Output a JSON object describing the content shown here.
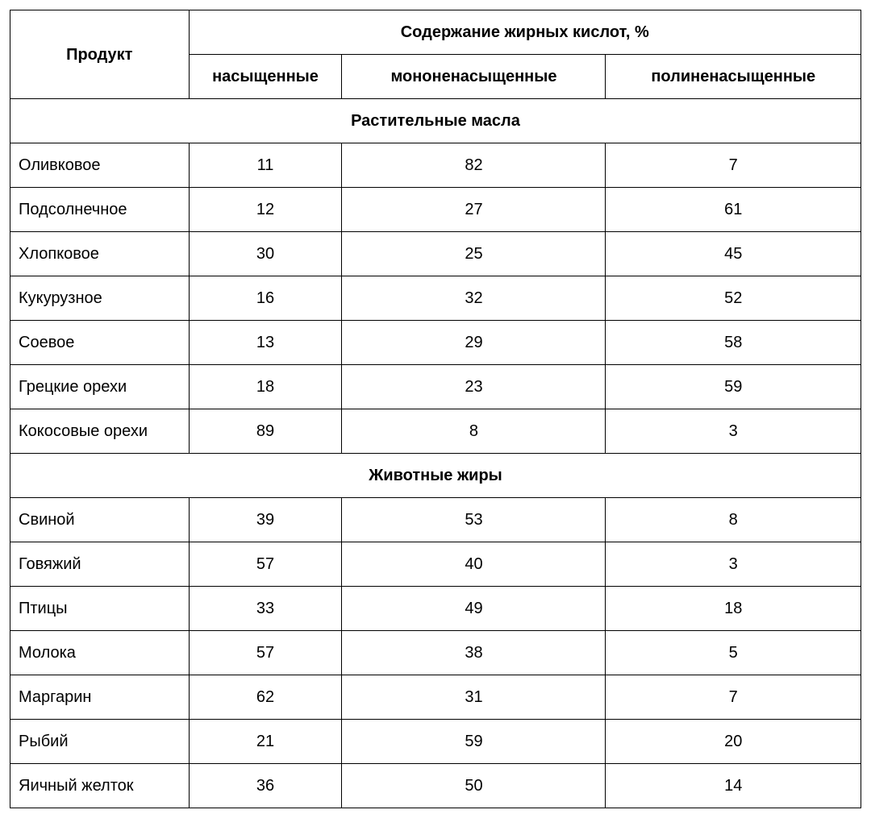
{
  "table": {
    "type": "table",
    "border_color": "#000000",
    "background_color": "#ffffff",
    "text_color": "#000000",
    "font_family": "Arial",
    "header_fontsize_pt": 15,
    "body_fontsize_pt": 15,
    "column_widths_pct": [
      21,
      18,
      31,
      30
    ],
    "alignments": [
      "left",
      "center",
      "center",
      "center"
    ],
    "headers": {
      "product": "Продукт",
      "group": "Содержание жирных кислот, %",
      "sub": {
        "saturated": "насыщенные",
        "mono": "мононенасыщенные",
        "poly": "полиненасыщенные"
      }
    },
    "sections": [
      {
        "title": "Растительные масла",
        "rows": [
          {
            "name": "Оливковое",
            "saturated": "11",
            "mono": "82",
            "poly": "7"
          },
          {
            "name": "Подсолнечное",
            "saturated": "12",
            "mono": "27",
            "poly": "61"
          },
          {
            "name": "Хлопковое",
            "saturated": "30",
            "mono": "25",
            "poly": "45"
          },
          {
            "name": "Кукурузное",
            "saturated": "16",
            "mono": "32",
            "poly": "52"
          },
          {
            "name": "Соевое",
            "saturated": "13",
            "mono": "29",
            "poly": "58"
          },
          {
            "name": "Грецкие орехи",
            "saturated": "18",
            "mono": "23",
            "poly": "59"
          },
          {
            "name": "Кокосовые орехи",
            "saturated": "89",
            "mono": "8",
            "poly": "3"
          }
        ]
      },
      {
        "title": "Животные жиры",
        "rows": [
          {
            "name": "Свиной",
            "saturated": "39",
            "mono": "53",
            "poly": "8"
          },
          {
            "name": "Говяжий",
            "saturated": "57",
            "mono": "40",
            "poly": "3"
          },
          {
            "name": "Птицы",
            "saturated": "33",
            "mono": "49",
            "poly": "18"
          },
          {
            "name": "Молока",
            "saturated": "57",
            "mono": "38",
            "poly": "5"
          },
          {
            "name": "Маргарин",
            "saturated": "62",
            "mono": "31",
            "poly": "7"
          },
          {
            "name": "Рыбий",
            "saturated": "21",
            "mono": "59",
            "poly": "20"
          },
          {
            "name": "Яичный желток",
            "saturated": "36",
            "mono": "50",
            "poly": "14"
          }
        ]
      }
    ]
  }
}
